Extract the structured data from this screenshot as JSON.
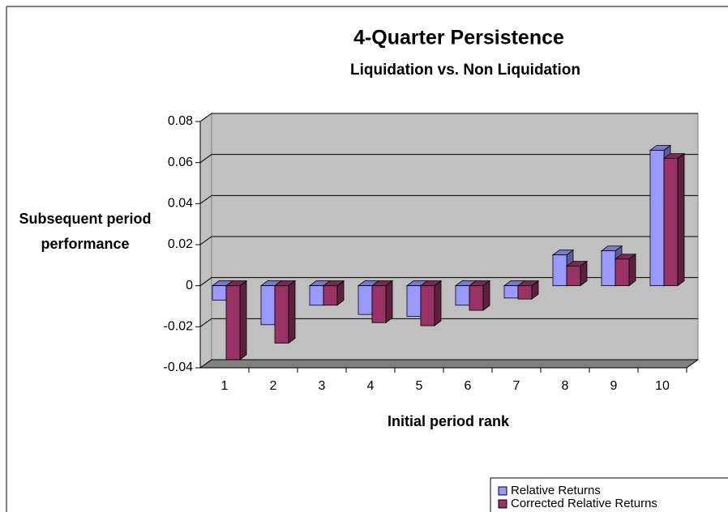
{
  "chart_data": {
    "type": "bar3d",
    "title": "4-Quarter Persistence",
    "subtitle": "Liquidation vs. Non Liquidation",
    "y_label": "Subsequent period performance",
    "x_label": "Initial period rank",
    "categories": [
      "1",
      "2",
      "3",
      "4",
      "5",
      "6",
      "7",
      "8",
      "9",
      "10"
    ],
    "series": [
      {
        "name": "Relative Returns",
        "color": "#9999ff",
        "values": [
          -0.007,
          -0.019,
          -0.0095,
          -0.014,
          -0.015,
          -0.0095,
          -0.006,
          0.015,
          0.017,
          0.066
        ]
      },
      {
        "name": "Corrected Relative Returns",
        "color": "#993366",
        "values": [
          -0.036,
          -0.028,
          -0.0095,
          -0.018,
          -0.0195,
          -0.012,
          -0.0065,
          0.0095,
          0.013,
          0.062
        ]
      }
    ],
    "ylim": [
      -0.04,
      0.08
    ],
    "yticks": [
      -0.04,
      -0.02,
      0,
      0.02,
      0.04,
      0.06,
      0.08
    ],
    "grid": true,
    "legend": "bottom-right"
  }
}
